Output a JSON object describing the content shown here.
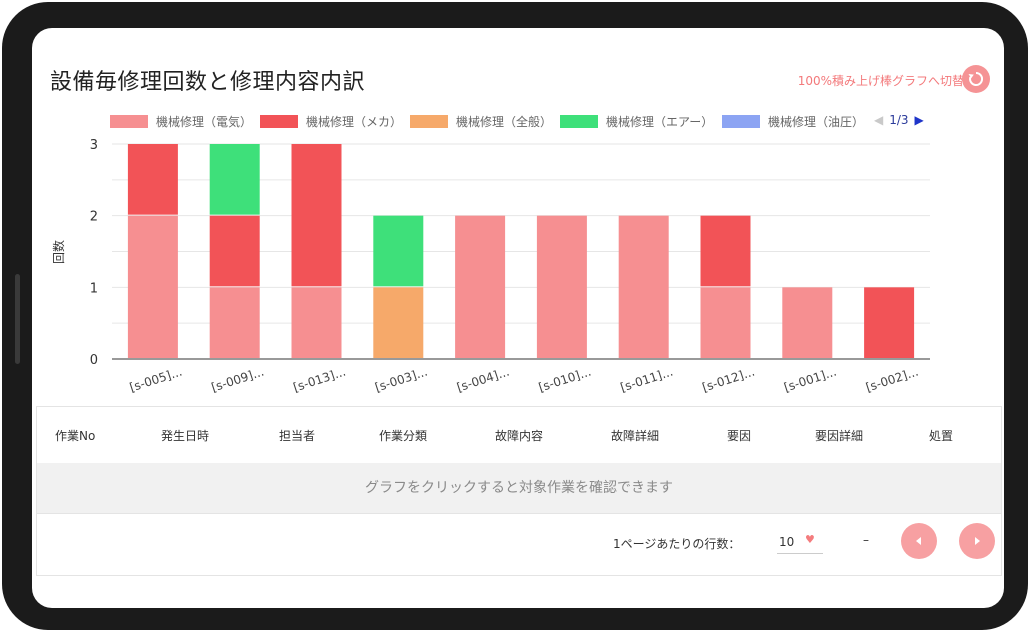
{
  "page": {
    "title": "設備毎修理回数と修理内容内訳",
    "toggle_label": "100%積み上げ棒グラフへ切替"
  },
  "legend": {
    "items": [
      {
        "label": "機械修理（電気）",
        "color": "#f68f91"
      },
      {
        "label": "機械修理（メカ）",
        "color": "#f25357"
      },
      {
        "label": "機械修理（全般）",
        "color": "#f6a96a"
      },
      {
        "label": "機械修理（エアー）",
        "color": "#3ee07a"
      },
      {
        "label": "機械修理（油圧）",
        "color": "#8ca4f3"
      }
    ],
    "pager": {
      "page": "1/3",
      "prev_icon": "triangle-left-icon",
      "next_icon": "triangle-right-icon"
    }
  },
  "chart_data": {
    "type": "bar",
    "stacked": true,
    "categories": [
      "[s-005]...",
      "[s-009]...",
      "[s-013]...",
      "[s-003]...",
      "[s-004]...",
      "[s-010]...",
      "[s-011]...",
      "[s-012]...",
      "[s-001]...",
      "[s-002]..."
    ],
    "series": [
      {
        "name": "機械修理（電気）",
        "color": "#f68f91",
        "values": [
          2,
          1,
          1,
          0,
          2,
          2,
          2,
          1,
          1,
          0
        ]
      },
      {
        "name": "機械修理（メカ）",
        "color": "#f25357",
        "values": [
          1,
          1,
          2,
          0,
          0,
          0,
          0,
          1,
          0,
          1
        ]
      },
      {
        "name": "機械修理（全般）",
        "color": "#f6a96a",
        "values": [
          0,
          0,
          0,
          1,
          0,
          0,
          0,
          0,
          0,
          0
        ]
      },
      {
        "name": "機械修理（エアー）",
        "color": "#3ee07a",
        "values": [
          0,
          1,
          0,
          1,
          0,
          0,
          0,
          0,
          0,
          0
        ]
      },
      {
        "name": "機械修理（油圧）",
        "color": "#8ca4f3",
        "values": [
          0,
          0,
          0,
          0,
          0,
          0,
          0,
          0,
          0,
          0
        ]
      }
    ],
    "ylabel": "回数",
    "yticks": [
      0,
      1,
      2,
      3
    ],
    "ylim": [
      0,
      3
    ],
    "grid": true
  },
  "table": {
    "columns": [
      "作業No",
      "発生日時",
      "担当者",
      "作業分類",
      "故障内容",
      "故障詳細",
      "要因",
      "要因詳細",
      "処置"
    ],
    "empty_message": "グラフをクリックすると対象作業を確認できます",
    "rows_per_page_label": "1ページあたりの行数：",
    "rows_per_page": "10",
    "range_text": "–",
    "prev_icon": "chevron-left-icon",
    "next_icon": "chevron-right-icon"
  }
}
